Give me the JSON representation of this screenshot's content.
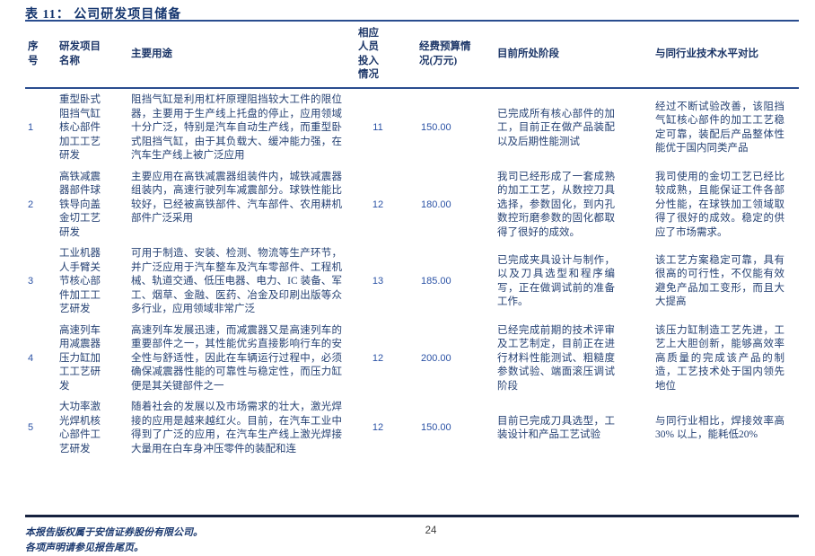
{
  "page": {
    "title": "表 11： 公司研发项目储备",
    "page_number": "24"
  },
  "colors": {
    "text_navy": "#254173",
    "header_navy": "#1b3567",
    "digit_blue": "#2b52a5",
    "rule_navy": "#2a4d8f",
    "rule_dark": "#16223f"
  },
  "table": {
    "columns": {
      "no": "序号",
      "name": "研发项目名称",
      "usage": "主要用途",
      "personnel": "相应人员投入情况",
      "budget": "经费预算情况(万元)",
      "stage": "目前所处阶段",
      "comparison": "与同行业技术水平对比"
    },
    "rows": [
      {
        "no": "1",
        "name": "重型卧式阻挡气缸核心部件加工工艺研发",
        "usage": "阻挡气缸是利用杠杆原理阻挡较大工件的限位器，主要用于生产线上托盘的停止，应用领域十分广泛，特别是汽车自动生产线，而重型卧式阻挡气缸，由于其负载大、缓冲能力强，在汽车生产线上被广泛应用",
        "personnel": "11",
        "budget": "150.00",
        "stage": "已完成所有核心部件的加工，目前正在做产品装配以及后期性能测试",
        "comparison": "经过不断试验改善，该阻挡气缸核心部件的加工工艺稳定可靠，装配后产品整体性能优于国内同类产品"
      },
      {
        "no": "2",
        "name": "高铁减震器部件球铁导向盖金切工艺研发",
        "usage": "主要应用在高铁减震器组装件内，城铁减震器组装内，高速行驶列车减震部分。球铁性能比较好，已经被高铁部件、汽车部件、农用耕机部件广泛采用",
        "personnel": "12",
        "budget": "180.00",
        "stage": "我司已经形成了一套成熟的加工工艺，从数控刀具选择，参数固化，到内孔数控珩磨参数的固化都取得了很好的成效。",
        "comparison": "我司使用的金切工艺已经比较成熟，且能保证工件各部分性能，在球铁加工领域取得了很好的成效。稳定的供应了市场需求。"
      },
      {
        "no": "3",
        "name": "工业机器人手臂关节核心部件加工工艺研发",
        "usage": "可用于制造、安装、检测、物流等生产环节，并广泛应用于汽车整车及汽车零部件、工程机械、轨道交通、低压电器、电力、IC 装备、军工、烟草、金融、医药、冶金及印刷出版等众多行业，应用领域非常广泛",
        "personnel": "13",
        "budget": "185.00",
        "stage": "已完成夹具设计与制作，以及刀具选型和程序编写，正在做调试前的准备工作。",
        "comparison": "该工艺方案稳定可靠，具有很高的可行性，不仅能有效避免产品加工变形，而且大大提高"
      },
      {
        "no": "4",
        "name": "高速列车用减震器压力缸加工工艺研发",
        "usage": "高速列车发展迅速，而减震器又是高速列车的重要部件之一，其性能优劣直接影响行车的安全性与舒适性，因此在车辆运行过程中，必须确保减震器性能的可靠性与稳定性，而压力缸便是其关键部件之一",
        "personnel": "12",
        "budget": "200.00",
        "stage": "已经完成前期的技术评审及工艺制定，目前正在进行材料性能测试、粗糙度参数试验、端面滚压调试阶段",
        "comparison": "该压力缸制造工艺先进，工艺上大胆创新，能够高效率高质量的完成该产品的制造，工艺技术处于国内领先地位"
      },
      {
        "no": "5",
        "name": "大功率激光焊机核心部件工艺研发",
        "usage": "随着社会的发展以及市场需求的壮大，激光焊接的应用是越来越红火。目前，在汽车工业中得到了广泛的应用，在汽车生产线上激光焊接大量用在白车身冲压零件的装配和连",
        "personnel": "12",
        "budget": "150.00",
        "stage": "目前已完成刀具选型，工装设计和产品工艺试验",
        "comparison": "与同行业相比，焊接效率高30% 以上，能耗低20%"
      }
    ]
  },
  "footer": {
    "copyright_line1": "本报告版权属于安信证券股份有限公司。",
    "copyright_line2": "各项声明请参见报告尾页。"
  }
}
